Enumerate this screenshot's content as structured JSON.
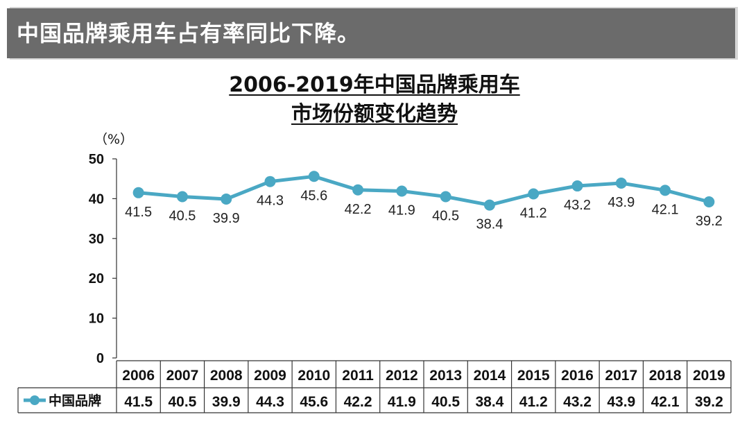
{
  "banner": {
    "title": "中国品牌乘用车占有率同比下降。"
  },
  "chart_data": {
    "type": "line",
    "title": "2006-2019年中国品牌乘用车",
    "subtitle": "市场份额变化趋势",
    "ylabel": "（%）",
    "ylim": [
      0,
      50
    ],
    "yticks": [
      0,
      10,
      20,
      30,
      40,
      50
    ],
    "grid": false,
    "categories": [
      "2006",
      "2007",
      "2008",
      "2009",
      "2010",
      "2011",
      "2012",
      "2013",
      "2014",
      "2015",
      "2016",
      "2017",
      "2018",
      "2019"
    ],
    "series": [
      {
        "name": "中国品牌",
        "color": "#4aa8c4",
        "values": [
          41.5,
          40.5,
          39.9,
          44.3,
          45.6,
          42.2,
          41.9,
          40.5,
          38.4,
          41.2,
          43.2,
          43.9,
          42.1,
          39.2
        ]
      }
    ],
    "legend_position": "table-left",
    "data_table": true
  }
}
